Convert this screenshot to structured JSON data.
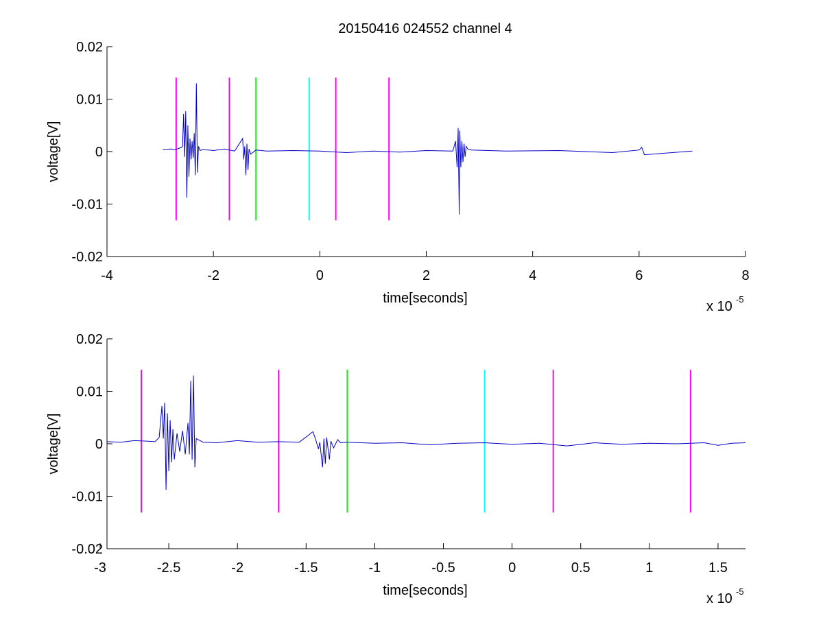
{
  "figure_title": "20150416 024552 channel 4",
  "colors": {
    "waveform": "#0000c8",
    "magenta": "#ff00ff",
    "green": "#00ff00",
    "cyan": "#00ffff",
    "axes": "#000000"
  },
  "chart_data": [
    {
      "type": "line",
      "title": "20150416 024552 channel 4",
      "xlabel": "time[seconds]",
      "ylabel": "voltage[V]",
      "x_multiplier_label": "x 10",
      "x_multiplier_exponent": "-5",
      "xlim": [
        -4e-05,
        8e-05
      ],
      "ylim": [
        -0.02,
        0.02
      ],
      "xticks": [
        -4e-05,
        -2e-05,
        0,
        2e-05,
        4e-05,
        6e-05,
        8e-05
      ],
      "xtick_labels": [
        "-4",
        "-2",
        "0",
        "2",
        "4",
        "6",
        "8"
      ],
      "yticks": [
        0.02,
        0.01,
        0,
        -0.01,
        -0.02
      ],
      "ytick_labels": [
        "0.02",
        "0.01",
        "0",
        "-0.01",
        "-0.02"
      ],
      "grid": false,
      "series": [
        {
          "color": "#0000c8",
          "x": [
            -2.95e-05,
            -2.8e-05,
            -2.7e-05,
            -2.6e-05,
            -2.58e-05,
            -2.56e-05,
            -2.54e-05,
            -2.52e-05,
            -2.5e-05,
            -2.48e-05,
            -2.46e-05,
            -2.44e-05,
            -2.42e-05,
            -2.4e-05,
            -2.38e-05,
            -2.36e-05,
            -2.34e-05,
            -2.32e-05,
            -2.3e-05,
            -2.28e-05,
            -2.25e-05,
            -2.2e-05,
            -2e-05,
            -1.8e-05,
            -1.6e-05,
            -1.45e-05,
            -1.43e-05,
            -1.41e-05,
            -1.39e-05,
            -1.37e-05,
            -1.35e-05,
            -1.33e-05,
            -1.3e-05,
            -1.2e-05,
            -1e-05,
            -5e-06,
            0,
            5e-06,
            1e-05,
            1.5e-05,
            2e-05,
            2.5e-05,
            2.55e-05,
            2.58e-05,
            2.6e-05,
            2.62e-05,
            2.63e-05,
            2.65e-05,
            2.67e-05,
            2.69e-05,
            2.71e-05,
            2.73e-05,
            2.75e-05,
            2.78e-05,
            2.85e-05,
            3.5e-05,
            4.5e-05,
            5.5e-05,
            6e-05,
            6.05e-05,
            6.1e-05,
            7e-05
          ],
          "y": [
            0.0004,
            0.0005,
            0.0004,
            0.0008,
            0.001,
            0.0072,
            -0.001,
            0.0077,
            -0.0088,
            0.005,
            -0.0048,
            0.0025,
            -0.0015,
            0.002,
            -0.0012,
            0.0035,
            -0.0045,
            0.013,
            -0.004,
            0.001,
            0.0002,
            0.0004,
            0.0002,
            0.0005,
            0.0001,
            0.0025,
            -0.0015,
            0.001,
            -0.0045,
            0.0015,
            -0.0035,
            0.0005,
            -0.0005,
            0.0003,
            0.0001,
            0.0002,
            0.0001,
            -0.0002,
            0.0001,
            -0.0001,
            0.0002,
            0.0001,
            0.002,
            -0.003,
            0.0045,
            -0.012,
            0.004,
            -0.003,
            0.002,
            -0.002,
            0.0015,
            -0.001,
            0.001,
            0.0005,
            0.0003,
            0.0001,
            0.0002,
            -0.0002,
            0.0003,
            0.0008,
            -0.0006,
            0.0001
          ]
        }
      ],
      "markers": [
        {
          "x": -2.7e-05,
          "ymin": -0.0131,
          "ymax": 0.0141,
          "color": "#ff00ff"
        },
        {
          "x": -1.7e-05,
          "ymin": -0.0131,
          "ymax": 0.0141,
          "color": "#ff00ff"
        },
        {
          "x": -1.2e-05,
          "ymin": -0.0131,
          "ymax": 0.0141,
          "color": "#00ff00"
        },
        {
          "x": -2e-06,
          "ymin": -0.0131,
          "ymax": 0.0141,
          "color": "#00ffff"
        },
        {
          "x": 3e-06,
          "ymin": -0.0131,
          "ymax": 0.0141,
          "color": "#ff00ff"
        },
        {
          "x": 1.3e-05,
          "ymin": -0.0131,
          "ymax": 0.0141,
          "color": "#ff00ff"
        }
      ]
    },
    {
      "type": "line",
      "title": "",
      "xlabel": "time[seconds]",
      "ylabel": "voltage[V]",
      "x_multiplier_label": "x 10",
      "x_multiplier_exponent": "-5",
      "xlim": [
        -2.95e-05,
        1.7e-05
      ],
      "ylim": [
        -0.02,
        0.02
      ],
      "xticks": [
        -3e-05,
        -2.5e-05,
        -2e-05,
        -1.5e-05,
        -1e-05,
        -5e-06,
        0,
        5e-06,
        1e-05,
        1.5e-05
      ],
      "xtick_labels": [
        "-3",
        "-2.5",
        "-2",
        "-1.5",
        "-1",
        "-0.5",
        "0",
        "0.5",
        "1",
        "1.5"
      ],
      "yticks": [
        0.02,
        0.01,
        0,
        -0.01,
        -0.02
      ],
      "ytick_labels": [
        "0.02",
        "0.01",
        "0",
        "-0.01",
        "-0.02"
      ],
      "grid": false,
      "series": [
        {
          "color": "#0000c8",
          "x": [
            -2.95e-05,
            -2.85e-05,
            -2.75e-05,
            -2.65e-05,
            -2.6e-05,
            -2.57e-05,
            -2.55e-05,
            -2.54e-05,
            -2.53e-05,
            -2.52e-05,
            -2.51e-05,
            -2.5e-05,
            -2.49e-05,
            -2.48e-05,
            -2.47e-05,
            -2.46e-05,
            -2.44e-05,
            -2.42e-05,
            -2.4e-05,
            -2.38e-05,
            -2.36e-05,
            -2.35e-05,
            -2.34e-05,
            -2.33e-05,
            -2.32e-05,
            -2.31e-05,
            -2.3e-05,
            -2.25e-05,
            -2.15e-05,
            -2e-05,
            -1.85e-05,
            -1.7e-05,
            -1.55e-05,
            -1.45e-05,
            -1.43e-05,
            -1.41e-05,
            -1.4e-05,
            -1.38e-05,
            -1.37e-05,
            -1.36e-05,
            -1.35e-05,
            -1.33e-05,
            -1.32e-05,
            -1.3e-05,
            -1.27e-05,
            -1.25e-05,
            -1.2e-05,
            -1e-05,
            -8e-06,
            -6e-06,
            -4e-06,
            -2e-06,
            0,
            2e-06,
            4e-06,
            6e-06,
            8e-06,
            1e-05,
            1.2e-05,
            1.4e-05,
            1.5e-05,
            1.6e-05,
            1.7e-05
          ],
          "y": [
            0.0004,
            0.0003,
            0.0006,
            0.0005,
            0.0004,
            0.0012,
            0.0072,
            0.001,
            0.0078,
            -0.0088,
            0.0058,
            -0.0052,
            0.0045,
            -0.0035,
            0.0028,
            -0.003,
            0.002,
            -0.0015,
            0.0025,
            -0.002,
            0.004,
            -0.002,
            0.012,
            -0.003,
            0.013,
            -0.0045,
            0.001,
            0.0003,
            0.0002,
            0.0006,
            0.0003,
            0.0004,
            0.0003,
            0.0023,
            0.0008,
            -0.001,
            0.0003,
            -0.0045,
            0.001,
            -0.0038,
            0.0012,
            -0.003,
            0.0005,
            -0.0008,
            0.0008,
            0.0002,
            0.0003,
            0.0001,
            0.0002,
            -0.0002,
            0.0001,
            0.0002,
            -0.0001,
            0.0001,
            -0.0004,
            0.0002,
            -0.0001,
            0.0001,
            0.0,
            0.0002,
            -0.0003,
            0.0001,
            0.0002
          ]
        }
      ],
      "markers": [
        {
          "x": -2.7e-05,
          "ymin": -0.0131,
          "ymax": 0.0141,
          "color": "#ff00ff"
        },
        {
          "x": -1.7e-05,
          "ymin": -0.0131,
          "ymax": 0.0141,
          "color": "#ff00ff"
        },
        {
          "x": -1.2e-05,
          "ymin": -0.0131,
          "ymax": 0.0141,
          "color": "#00ff00"
        },
        {
          "x": -2e-06,
          "ymin": -0.0131,
          "ymax": 0.0141,
          "color": "#00ffff"
        },
        {
          "x": 3e-06,
          "ymin": -0.0131,
          "ymax": 0.0141,
          "color": "#ff00ff"
        },
        {
          "x": 1.3e-05,
          "ymin": -0.0131,
          "ymax": 0.0141,
          "color": "#ff00ff"
        }
      ]
    }
  ]
}
